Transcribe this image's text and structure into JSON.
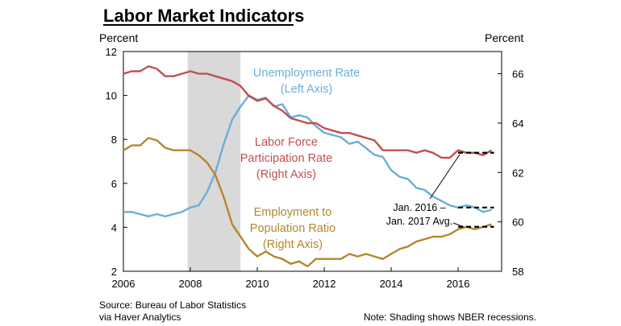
{
  "chart_data": {
    "type": "line",
    "title": "Labor Market Indicators",
    "left_axis": {
      "label": "Percent",
      "ylim": [
        2,
        12
      ],
      "ticks": [
        "2",
        "4",
        "6",
        "8",
        "10",
        "12"
      ]
    },
    "right_axis": {
      "label": "Percent",
      "ylim": [
        58,
        66.9
      ],
      "ticks": [
        "58",
        "60",
        "62",
        "64",
        "66"
      ]
    },
    "x_axis": {
      "xlim": [
        2006,
        2017.3
      ],
      "ticks": [
        "2006",
        "2008",
        "2010",
        "2012",
        "2014",
        "2016"
      ]
    },
    "recession": {
      "start": 2007.92,
      "end": 2009.5
    },
    "series": [
      {
        "name": "Unemployment Rate",
        "label_lines": [
          "Unemployment Rate",
          "(Left Axis)"
        ],
        "axis": "left",
        "color": "#6baed6",
        "x": [
          2006.0,
          2006.25,
          2006.5,
          2006.75,
          2007.0,
          2007.25,
          2007.5,
          2007.75,
          2008.0,
          2008.25,
          2008.5,
          2008.75,
          2009.0,
          2009.25,
          2009.5,
          2009.75,
          2010.0,
          2010.25,
          2010.5,
          2010.75,
          2011.0,
          2011.25,
          2011.5,
          2011.75,
          2012.0,
          2012.25,
          2012.5,
          2012.75,
          2013.0,
          2013.25,
          2013.5,
          2013.75,
          2014.0,
          2014.25,
          2014.5,
          2014.75,
          2015.0,
          2015.25,
          2015.5,
          2015.75,
          2016.0,
          2016.25,
          2016.5,
          2016.75,
          2017.0
        ],
        "values": [
          4.7,
          4.7,
          4.6,
          4.5,
          4.6,
          4.5,
          4.6,
          4.7,
          4.9,
          5.0,
          5.6,
          6.5,
          7.8,
          8.9,
          9.5,
          10.0,
          9.8,
          9.9,
          9.5,
          9.6,
          9.0,
          9.1,
          9.0,
          8.6,
          8.3,
          8.2,
          8.1,
          7.8,
          7.9,
          7.6,
          7.3,
          7.2,
          6.6,
          6.3,
          6.2,
          5.8,
          5.7,
          5.4,
          5.2,
          5.0,
          4.9,
          5.0,
          4.9,
          4.7,
          4.8
        ]
      },
      {
        "name": "Labor Force Participation Rate",
        "label_lines": [
          "Labor Force",
          "Participation Rate",
          "(Right Axis)"
        ],
        "axis": "right",
        "color": "#c0504d",
        "x": [
          2006.0,
          2006.25,
          2006.5,
          2006.75,
          2007.0,
          2007.25,
          2007.5,
          2007.75,
          2008.0,
          2008.25,
          2008.5,
          2008.75,
          2009.0,
          2009.25,
          2009.5,
          2009.75,
          2010.0,
          2010.25,
          2010.5,
          2010.75,
          2011.0,
          2011.25,
          2011.5,
          2011.75,
          2012.0,
          2012.25,
          2012.5,
          2012.75,
          2013.0,
          2013.25,
          2013.5,
          2013.75,
          2014.0,
          2014.25,
          2014.5,
          2014.75,
          2015.0,
          2015.25,
          2015.5,
          2015.75,
          2016.0,
          2016.25,
          2016.5,
          2016.75,
          2017.0
        ],
        "values": [
          66.0,
          66.1,
          66.1,
          66.3,
          66.2,
          65.9,
          65.9,
          66.0,
          66.1,
          66.0,
          66.0,
          65.9,
          65.8,
          65.7,
          65.5,
          65.1,
          64.9,
          65.0,
          64.7,
          64.5,
          64.2,
          64.1,
          64.0,
          64.0,
          63.8,
          63.7,
          63.6,
          63.6,
          63.5,
          63.4,
          63.3,
          62.9,
          62.9,
          62.9,
          62.9,
          62.8,
          62.9,
          62.8,
          62.6,
          62.6,
          62.9,
          62.8,
          62.8,
          62.7,
          62.9
        ]
      },
      {
        "name": "Employment to Population Ratio",
        "label_lines": [
          "Employment to",
          "Population Ratio",
          "(Right Axis)"
        ],
        "axis": "right",
        "color": "#b5862d",
        "x": [
          2006.0,
          2006.25,
          2006.5,
          2006.75,
          2007.0,
          2007.25,
          2007.5,
          2007.75,
          2008.0,
          2008.25,
          2008.5,
          2008.75,
          2009.0,
          2009.25,
          2009.5,
          2009.75,
          2010.0,
          2010.25,
          2010.5,
          2010.75,
          2011.0,
          2011.25,
          2011.5,
          2011.75,
          2012.0,
          2012.25,
          2012.5,
          2012.75,
          2013.0,
          2013.25,
          2013.5,
          2013.75,
          2014.0,
          2014.25,
          2014.5,
          2014.75,
          2015.0,
          2015.25,
          2015.5,
          2015.75,
          2016.0,
          2016.25,
          2016.5,
          2016.75,
          2017.0
        ],
        "values": [
          62.9,
          63.1,
          63.1,
          63.4,
          63.3,
          63.0,
          62.9,
          62.9,
          62.9,
          62.7,
          62.4,
          61.9,
          61.0,
          59.9,
          59.4,
          58.9,
          58.6,
          58.8,
          58.6,
          58.5,
          58.3,
          58.4,
          58.2,
          58.5,
          58.5,
          58.5,
          58.5,
          58.7,
          58.6,
          58.7,
          58.6,
          58.5,
          58.7,
          58.9,
          59.0,
          59.2,
          59.3,
          59.4,
          59.4,
          59.5,
          59.7,
          59.8,
          59.7,
          59.8,
          59.9
        ]
      }
    ],
    "averages": {
      "label_lines": [
        "Jan. 2016 –",
        "Jan. 2017 Avg."
      ],
      "x_range": [
        2016.0,
        2017.0
      ],
      "lfpr": 62.8,
      "unemployment": 4.9,
      "epop": 59.8
    }
  },
  "footer": {
    "source_lines": [
      "Source: Bureau of Labor Statistics",
      "via Haver Analytics"
    ],
    "note": "Note: Shading shows NBER recessions."
  }
}
